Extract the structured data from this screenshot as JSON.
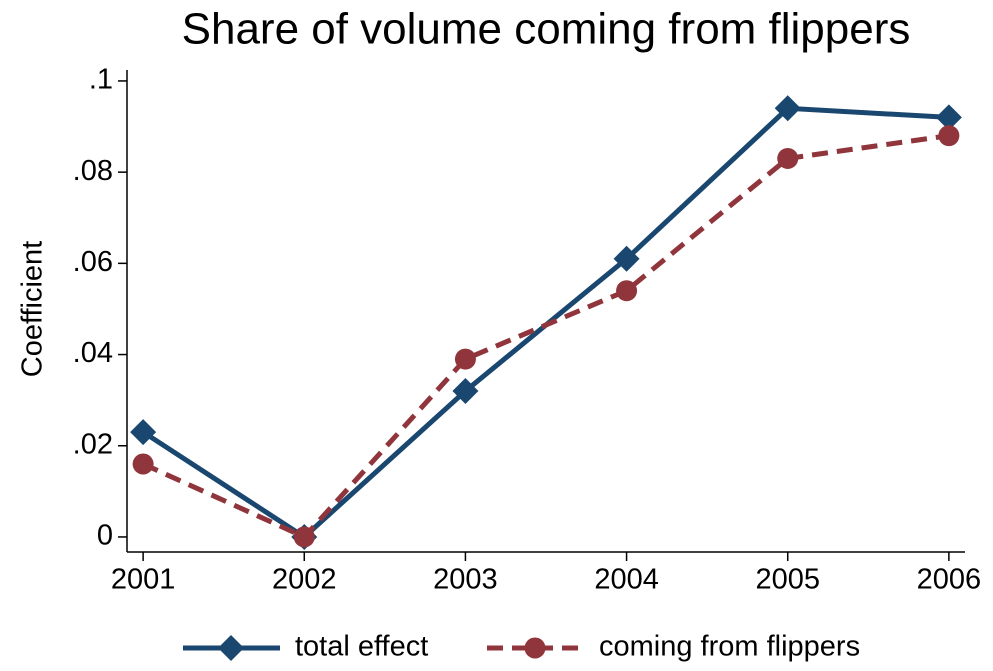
{
  "chart_data": {
    "type": "line",
    "title": "Share of volume coming from flippers",
    "y_label": "Coefficient",
    "x": [
      2001,
      2002,
      2003,
      2004,
      2005,
      2006
    ],
    "series": [
      {
        "name": "total effect",
        "color": "#1a476f",
        "marker": "diamond",
        "dash": false,
        "values": [
          0.023,
          0,
          0.032,
          0.061,
          0.094,
          0.092
        ]
      },
      {
        "name": "coming from flippers",
        "color": "#90353b",
        "marker": "circle",
        "dash": true,
        "values": [
          0.016,
          0,
          0.039,
          0.054,
          0.083,
          0.088
        ]
      }
    ],
    "xlim": [
      2000.9,
      2006.1
    ],
    "xticks": [
      2001,
      2002,
      2003,
      2004,
      2005,
      2006
    ],
    "ylim": [
      -0.0033,
      0.1024
    ],
    "yticks": [
      0,
      {
        "value": 0.02,
        "label": ".02"
      },
      {
        "value": 0.04,
        "label": ".04"
      },
      {
        "value": 0.06,
        "label": ".06"
      },
      {
        "value": 0.08,
        "label": ".08"
      },
      {
        "value": 0.1,
        "label": ".1"
      }
    ],
    "legend": "bottom"
  }
}
